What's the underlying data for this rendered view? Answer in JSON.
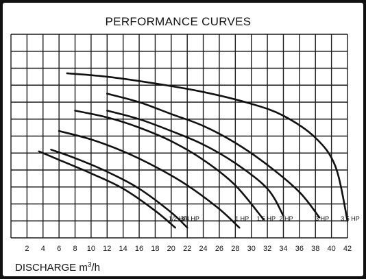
{
  "chart_data": {
    "type": "line",
    "title": "PERFORMANCE CURVES",
    "xlabel": "DISCHARGE m³/h",
    "xlabel_text": "DISCHARGE m",
    "xlabel_sup": "3",
    "xlabel_unit": "/h",
    "ylabel": "",
    "xlim": [
      0,
      42
    ],
    "ylim": [
      0,
      12
    ],
    "grid": true,
    "x_ticks": [
      2,
      4,
      6,
      8,
      10,
      12,
      14,
      16,
      18,
      20,
      22,
      24,
      26,
      28,
      30,
      32,
      34,
      36,
      38,
      40,
      42
    ],
    "series": [
      {
        "name": "1/2 HP",
        "x": [
          3.5,
          6,
          10,
          14,
          18,
          20.5
        ],
        "y": [
          5.1,
          4.6,
          3.8,
          2.9,
          1.6,
          0.6
        ]
      },
      {
        "name": "3/4 HP",
        "x": [
          5,
          8,
          12,
          16,
          20,
          22
        ],
        "y": [
          5.2,
          4.7,
          3.9,
          2.9,
          1.5,
          0.6
        ]
      },
      {
        "name": "1 HP",
        "x": [
          6,
          10,
          14,
          18,
          22,
          26,
          28.5
        ],
        "y": [
          6.3,
          5.8,
          5.1,
          4.2,
          3.1,
          1.7,
          0.6
        ]
      },
      {
        "name": "1,5 HP",
        "x": [
          8,
          12,
          16,
          20,
          24,
          28,
          31.5
        ],
        "y": [
          7.5,
          7.1,
          6.5,
          5.7,
          4.6,
          3.1,
          1.1
        ]
      },
      {
        "name": "2 HP",
        "x": [
          12,
          16,
          20,
          24,
          28,
          32,
          34
        ],
        "y": [
          7.5,
          7.0,
          6.3,
          5.5,
          4.4,
          2.9,
          1.3
        ]
      },
      {
        "name": "3 HP",
        "x": [
          12,
          16,
          20,
          24,
          28,
          32,
          36,
          38.5
        ],
        "y": [
          8.5,
          8.0,
          7.3,
          6.6,
          5.6,
          4.3,
          2.7,
          1.2
        ]
      },
      {
        "name": "3,5 HP",
        "x": [
          7,
          12,
          18,
          24,
          30,
          34,
          38,
          40.5,
          42
        ],
        "y": [
          9.7,
          9.5,
          9.1,
          8.6,
          7.9,
          7.2,
          5.9,
          4.2,
          1.0
        ]
      }
    ]
  }
}
